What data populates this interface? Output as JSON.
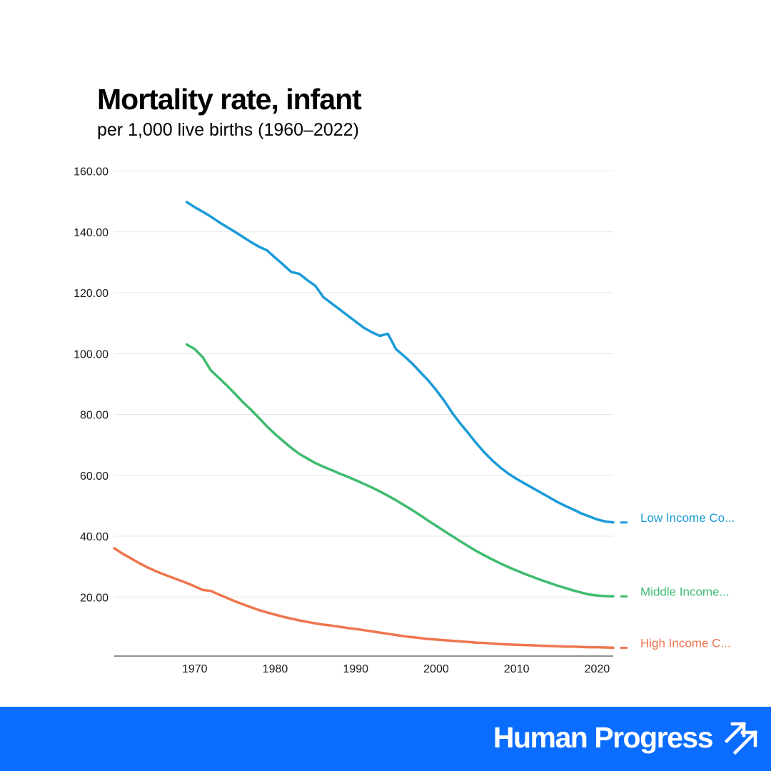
{
  "chart_data": {
    "type": "line",
    "title": "Mortality rate, infant",
    "subtitle": "per 1,000 live births (1960–2022)",
    "xlabel": "",
    "ylabel": "",
    "xlim": [
      1960,
      2022
    ],
    "ylim": [
      0,
      160
    ],
    "y_ticks": [
      20,
      40,
      60,
      80,
      100,
      120,
      140,
      160
    ],
    "y_tick_labels": [
      "20.00",
      "40.00",
      "60.00",
      "80.00",
      "100.00",
      "120.00",
      "140.00",
      "160.00"
    ],
    "x_ticks": [
      1970,
      1980,
      1990,
      2000,
      2010,
      2020
    ],
    "x_tick_labels": [
      "1970",
      "1980",
      "1990",
      "2000",
      "2010",
      "2020"
    ],
    "grid": true,
    "series": [
      {
        "name": "Low Income Co...",
        "color": "#1a9bd7",
        "x": [
          1969,
          1970,
          1971,
          1972,
          1973,
          1974,
          1975,
          1976,
          1977,
          1978,
          1979,
          1980,
          1981,
          1982,
          1983,
          1984,
          1985,
          1986,
          1987,
          1988,
          1989,
          1990,
          1991,
          1992,
          1993,
          1994,
          1995,
          1996,
          1997,
          1998,
          1999,
          2000,
          2001,
          2002,
          2003,
          2004,
          2005,
          2006,
          2007,
          2008,
          2009,
          2010,
          2011,
          2012,
          2013,
          2014,
          2015,
          2016,
          2017,
          2018,
          2019,
          2020,
          2021,
          2022
        ],
        "values": [
          149.8,
          148.1,
          146.6,
          145.0,
          143.2,
          141.6,
          140.0,
          138.3,
          136.6,
          135.1,
          133.9,
          131.5,
          129.2,
          126.8,
          126.2,
          124.1,
          122.2,
          118.5,
          116.5,
          114.5,
          112.5,
          110.5,
          108.5,
          107.0,
          105.8,
          106.5,
          101.5,
          99.2,
          96.8,
          94.0,
          91.2,
          88.0,
          84.5,
          80.5,
          77.0,
          73.8,
          70.5,
          67.5,
          64.8,
          62.5,
          60.5,
          58.8,
          57.3,
          55.8,
          54.3,
          52.8,
          51.3,
          50.0,
          48.8,
          47.5,
          46.5,
          45.5,
          44.8,
          44.5
        ]
      },
      {
        "name": "Middle Income...",
        "color": "#3fbb6f",
        "x": [
          1969,
          1970,
          1971,
          1972,
          1973,
          1974,
          1975,
          1976,
          1977,
          1978,
          1979,
          1980,
          1981,
          1982,
          1983,
          1984,
          1985,
          1986,
          1987,
          1988,
          1989,
          1990,
          1991,
          1992,
          1993,
          1994,
          1995,
          1996,
          1997,
          1998,
          1999,
          2000,
          2001,
          2002,
          2003,
          2004,
          2005,
          2006,
          2007,
          2008,
          2009,
          2010,
          2011,
          2012,
          2013,
          2014,
          2015,
          2016,
          2017,
          2018,
          2019,
          2020,
          2021,
          2022
        ],
        "values": [
          103.0,
          101.5,
          98.8,
          94.5,
          92.0,
          89.5,
          86.8,
          84.0,
          81.5,
          78.8,
          76.0,
          73.5,
          71.2,
          69.0,
          67.0,
          65.5,
          64.0,
          62.8,
          61.7,
          60.6,
          59.5,
          58.4,
          57.2,
          56.0,
          54.7,
          53.3,
          51.8,
          50.2,
          48.6,
          46.9,
          45.1,
          43.4,
          41.7,
          40.0,
          38.3,
          36.7,
          35.1,
          33.7,
          32.3,
          31.0,
          29.8,
          28.7,
          27.6,
          26.6,
          25.6,
          24.7,
          23.8,
          23.0,
          22.2,
          21.5,
          20.8,
          20.5,
          20.3,
          20.2
        ]
      },
      {
        "name": "High Income C...",
        "color": "#ee7650",
        "x": [
          1960,
          1961,
          1962,
          1963,
          1964,
          1965,
          1966,
          1967,
          1968,
          1969,
          1970,
          1971,
          1972,
          1973,
          1974,
          1975,
          1976,
          1977,
          1978,
          1979,
          1980,
          1981,
          1982,
          1983,
          1984,
          1985,
          1986,
          1987,
          1988,
          1989,
          1990,
          1991,
          1992,
          1993,
          1994,
          1995,
          1996,
          1997,
          1998,
          1999,
          2000,
          2001,
          2002,
          2003,
          2004,
          2005,
          2006,
          2007,
          2008,
          2009,
          2010,
          2011,
          2012,
          2013,
          2014,
          2015,
          2016,
          2017,
          2018,
          2019,
          2020,
          2021,
          2022
        ],
        "values": [
          36.0,
          34.3,
          32.8,
          31.3,
          29.9,
          28.7,
          27.6,
          26.6,
          25.6,
          24.6,
          23.5,
          22.3,
          22.0,
          20.8,
          19.7,
          18.6,
          17.6,
          16.6,
          15.7,
          14.9,
          14.2,
          13.5,
          12.9,
          12.3,
          11.8,
          11.3,
          10.9,
          10.6,
          10.2,
          9.8,
          9.5,
          9.1,
          8.7,
          8.3,
          7.9,
          7.5,
          7.1,
          6.8,
          6.5,
          6.2,
          6.0,
          5.8,
          5.6,
          5.4,
          5.2,
          5.0,
          4.9,
          4.7,
          4.5,
          4.4,
          4.3,
          4.2,
          4.1,
          4.0,
          3.9,
          3.8,
          3.7,
          3.7,
          3.6,
          3.5,
          3.5,
          3.4,
          3.3
        ]
      }
    ]
  },
  "footer": {
    "brand": "Human Progress",
    "logo_icon": "double-arrow-up-right-icon",
    "background_color": "#0a6dff"
  }
}
